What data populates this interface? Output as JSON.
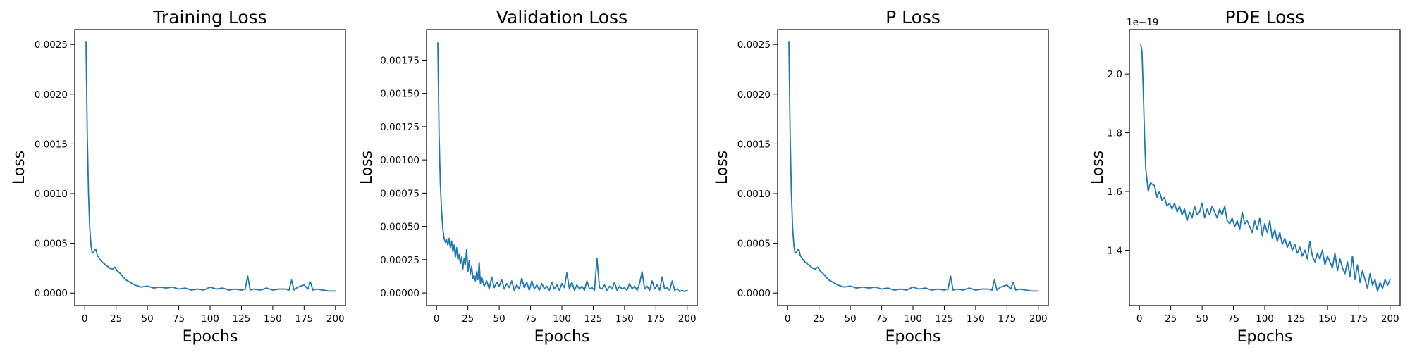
{
  "figure": {
    "background": "#ffffff",
    "line_color": "#1f77b4"
  },
  "chart_data": [
    {
      "type": "line",
      "title": "Training Loss",
      "xlabel": "Epochs",
      "ylabel": "Loss",
      "xlim": [
        -8,
        208
      ],
      "ylim": [
        -0.000126,
        0.00265
      ],
      "xticks": [
        0,
        25,
        50,
        75,
        100,
        125,
        150,
        175,
        200
      ],
      "yticks": [
        0.0,
        0.0005,
        0.001,
        0.0015,
        0.002,
        0.0025
      ],
      "ytick_labels": [
        "0.0000",
        "0.0005",
        "0.0010",
        "0.0015",
        "0.0020",
        "0.0025"
      ],
      "offset_text": "",
      "grid": false,
      "series": [
        {
          "x": [
            1,
            2,
            3,
            4,
            5,
            6,
            7,
            8,
            9,
            10,
            12,
            14,
            16,
            18,
            20,
            22,
            24,
            26,
            28,
            30,
            33,
            36,
            40,
            45,
            50,
            55,
            60,
            65,
            70,
            75,
            80,
            85,
            90,
            95,
            100,
            105,
            110,
            115,
            120,
            125,
            128,
            130,
            132,
            135,
            140,
            145,
            150,
            155,
            160,
            163,
            165,
            167,
            170,
            175,
            178,
            180,
            182,
            185,
            190,
            195,
            200
          ],
          "values": [
            0.00253,
            0.0016,
            0.001,
            0.00065,
            0.00048,
            0.0004,
            0.00041,
            0.00043,
            0.00044,
            0.00038,
            0.00034,
            0.00031,
            0.00029,
            0.00027,
            0.00025,
            0.00024,
            0.00026,
            0.00022,
            0.0002,
            0.00017,
            0.00013,
            0.00011,
            8e-05,
            6e-05,
            7e-05,
            5e-05,
            6e-05,
            5e-05,
            6e-05,
            4e-05,
            5e-05,
            3e-05,
            4e-05,
            3e-05,
            6e-05,
            4e-05,
            5e-05,
            3e-05,
            4e-05,
            3e-05,
            4e-05,
            0.00017,
            3e-05,
            4e-05,
            3e-05,
            5e-05,
            3e-05,
            4e-05,
            4e-05,
            3e-05,
            0.00013,
            3e-05,
            6e-05,
            8e-05,
            4e-05,
            0.00011,
            3e-05,
            4e-05,
            3e-05,
            2e-05,
            2e-05
          ]
        }
      ]
    },
    {
      "type": "line",
      "title": "Validation Loss",
      "xlabel": "Epochs",
      "ylabel": "Loss",
      "xlim": [
        -8,
        208
      ],
      "ylim": [
        -9.5e-05,
        0.00198
      ],
      "xticks": [
        0,
        25,
        50,
        75,
        100,
        125,
        150,
        175,
        200
      ],
      "yticks": [
        0.0,
        0.00025,
        0.0005,
        0.00075,
        0.001,
        0.00125,
        0.0015,
        0.00175
      ],
      "ytick_labels": [
        "0.00000",
        "0.00025",
        "0.00050",
        "0.00075",
        "0.00100",
        "0.00125",
        "0.00150",
        "0.00175"
      ],
      "offset_text": "",
      "grid": false,
      "series": [
        {
          "x": [
            1,
            2,
            3,
            4,
            5,
            6,
            7,
            8,
            9,
            10,
            11,
            12,
            13,
            14,
            15,
            16,
            17,
            18,
            19,
            20,
            21,
            22,
            23,
            24,
            25,
            26,
            27,
            28,
            29,
            30,
            31,
            32,
            33,
            34,
            35,
            36,
            38,
            40,
            42,
            44,
            46,
            48,
            50,
            52,
            54,
            56,
            58,
            60,
            62,
            64,
            66,
            68,
            70,
            72,
            74,
            76,
            78,
            80,
            82,
            84,
            86,
            88,
            90,
            92,
            94,
            96,
            98,
            100,
            102,
            104,
            106,
            108,
            110,
            112,
            114,
            116,
            118,
            120,
            122,
            124,
            126,
            128,
            130,
            132,
            134,
            136,
            138,
            140,
            142,
            144,
            146,
            148,
            150,
            152,
            154,
            156,
            158,
            160,
            162,
            164,
            166,
            168,
            170,
            172,
            174,
            176,
            178,
            180,
            182,
            184,
            186,
            188,
            190,
            192,
            194,
            196,
            198,
            200
          ],
          "values": [
            0.00188,
            0.0012,
            0.00082,
            0.00062,
            0.00048,
            0.00041,
            0.00038,
            0.0004,
            0.00036,
            0.00041,
            0.00034,
            0.00039,
            0.00031,
            0.00036,
            0.00027,
            0.00034,
            0.00025,
            0.00029,
            0.00022,
            0.00027,
            0.00018,
            0.00026,
            0.00021,
            0.00033,
            0.00016,
            0.00024,
            0.00014,
            0.0002,
            0.00011,
            0.00013,
            9e-05,
            0.00016,
            0.0001,
            0.00023,
            7e-05,
            0.00012,
            5e-05,
            9e-05,
            3e-05,
            0.00012,
            4e-05,
            8e-05,
            5e-05,
            0.0001,
            3e-05,
            7e-05,
            4e-05,
            9e-05,
            2e-05,
            6e-05,
            3e-05,
            0.00011,
            4e-05,
            8e-05,
            2e-05,
            9e-05,
            3e-05,
            6e-05,
            2e-05,
            7e-05,
            3e-05,
            5e-05,
            2e-05,
            8e-05,
            3e-05,
            6e-05,
            2e-05,
            7e-05,
            4e-05,
            0.00015,
            3e-05,
            8e-05,
            2e-05,
            6e-05,
            3e-05,
            5e-05,
            2e-05,
            9e-05,
            3e-05,
            4e-05,
            2e-05,
            0.00026,
            4e-05,
            3e-05,
            6e-05,
            2e-05,
            5e-05,
            3e-05,
            8e-05,
            2e-05,
            5e-05,
            3e-05,
            4e-05,
            2e-05,
            7e-05,
            3e-05,
            5e-05,
            2e-05,
            7e-05,
            0.00016,
            3e-05,
            5e-05,
            2e-05,
            9e-05,
            3e-05,
            6e-05,
            2e-05,
            0.00012,
            3e-05,
            4e-05,
            2e-05,
            9e-05,
            2e-05,
            3e-05,
            1e-05,
            2e-05,
            1e-05,
            2e-05
          ]
        }
      ]
    },
    {
      "type": "line",
      "title": "P Loss",
      "xlabel": "Epochs",
      "ylabel": "Loss",
      "xlim": [
        -8,
        208
      ],
      "ylim": [
        -0.000126,
        0.00265
      ],
      "xticks": [
        0,
        25,
        50,
        75,
        100,
        125,
        150,
        175,
        200
      ],
      "yticks": [
        0.0,
        0.0005,
        0.001,
        0.0015,
        0.002,
        0.0025
      ],
      "ytick_labels": [
        "0.0000",
        "0.0005",
        "0.0010",
        "0.0015",
        "0.0020",
        "0.0025"
      ],
      "offset_text": "",
      "grid": false,
      "series": [
        {
          "x": [
            1,
            2,
            3,
            4,
            5,
            6,
            7,
            8,
            9,
            10,
            12,
            14,
            16,
            18,
            20,
            22,
            24,
            26,
            28,
            30,
            33,
            36,
            40,
            45,
            50,
            55,
            60,
            65,
            70,
            75,
            80,
            85,
            90,
            95,
            100,
            105,
            110,
            115,
            120,
            125,
            128,
            130,
            132,
            135,
            140,
            145,
            150,
            155,
            160,
            163,
            165,
            167,
            170,
            175,
            178,
            180,
            182,
            185,
            190,
            195,
            200
          ],
          "values": [
            0.00253,
            0.0016,
            0.001,
            0.00065,
            0.00048,
            0.0004,
            0.00041,
            0.00043,
            0.00044,
            0.00038,
            0.00034,
            0.00031,
            0.00029,
            0.00027,
            0.00025,
            0.00024,
            0.00026,
            0.00022,
            0.0002,
            0.00017,
            0.00013,
            0.00011,
            8e-05,
            6e-05,
            7e-05,
            5e-05,
            6e-05,
            5e-05,
            6e-05,
            4e-05,
            5e-05,
            3e-05,
            4e-05,
            3e-05,
            6e-05,
            4e-05,
            5e-05,
            3e-05,
            4e-05,
            3e-05,
            4e-05,
            0.00017,
            3e-05,
            4e-05,
            3e-05,
            5e-05,
            3e-05,
            4e-05,
            4e-05,
            3e-05,
            0.00013,
            3e-05,
            6e-05,
            8e-05,
            4e-05,
            0.00011,
            3e-05,
            4e-05,
            3e-05,
            2e-05,
            2e-05
          ]
        }
      ]
    },
    {
      "type": "line",
      "title": "PDE Loss",
      "xlabel": "Epochs",
      "ylabel": "Loss",
      "xlim": [
        -8,
        208
      ],
      "ylim": [
        1.2115e-19,
        2.1515e-19
      ],
      "xticks": [
        0,
        25,
        50,
        75,
        100,
        125,
        150,
        175,
        200
      ],
      "yticks": [
        1.4e-19,
        1.6e-19,
        1.8e-19,
        2e-19
      ],
      "ytick_labels": [
        "1.4",
        "1.6",
        "1.8",
        "2.0"
      ],
      "offset_text": "1e−19",
      "grid": false,
      "series": [
        {
          "x": [
            1,
            2,
            3,
            4,
            5,
            6,
            7,
            8,
            9,
            10,
            12,
            14,
            16,
            18,
            20,
            22,
            24,
            26,
            28,
            30,
            32,
            34,
            36,
            38,
            40,
            42,
            44,
            46,
            48,
            50,
            52,
            54,
            56,
            58,
            60,
            62,
            64,
            66,
            68,
            70,
            72,
            74,
            76,
            78,
            80,
            82,
            84,
            86,
            88,
            90,
            92,
            94,
            96,
            98,
            100,
            102,
            104,
            106,
            108,
            110,
            112,
            114,
            116,
            118,
            120,
            122,
            124,
            126,
            128,
            130,
            132,
            134,
            136,
            138,
            140,
            142,
            144,
            146,
            148,
            150,
            152,
            154,
            156,
            158,
            160,
            162,
            164,
            166,
            168,
            170,
            172,
            174,
            176,
            178,
            180,
            182,
            184,
            186,
            188,
            190,
            192,
            194,
            196,
            198,
            200
          ],
          "values": [
            2.1e-19,
            2.08e-19,
            1.95e-19,
            1.8e-19,
            1.68e-19,
            1.64e-19,
            1.6e-19,
            1.62e-19,
            1.63e-19,
            1.625e-19,
            1.62e-19,
            1.58e-19,
            1.6e-19,
            1.57e-19,
            1.58e-19,
            1.55e-19,
            1.56e-19,
            1.54e-19,
            1.56e-19,
            1.53e-19,
            1.55e-19,
            1.52e-19,
            1.54e-19,
            1.5e-19,
            1.53e-19,
            1.51e-19,
            1.55e-19,
            1.52e-19,
            1.53e-19,
            1.56e-19,
            1.51e-19,
            1.54e-19,
            1.52e-19,
            1.55e-19,
            1.53e-19,
            1.51e-19,
            1.54e-19,
            1.52e-19,
            1.55e-19,
            1.5e-19,
            1.49e-19,
            1.51e-19,
            1.48e-19,
            1.5e-19,
            1.47e-19,
            1.53e-19,
            1.49e-19,
            1.5e-19,
            1.48e-19,
            1.46e-19,
            1.5e-19,
            1.47e-19,
            1.51e-19,
            1.45e-19,
            1.49e-19,
            1.46e-19,
            1.5e-19,
            1.44e-19,
            1.47e-19,
            1.43e-19,
            1.46e-19,
            1.42e-19,
            1.44e-19,
            1.41e-19,
            1.43e-19,
            1.4e-19,
            1.42e-19,
            1.39e-19,
            1.41e-19,
            1.38e-19,
            1.4e-19,
            1.37e-19,
            1.43e-19,
            1.38e-19,
            1.36e-19,
            1.39e-19,
            1.37e-19,
            1.4e-19,
            1.35e-19,
            1.38e-19,
            1.36e-19,
            1.34e-19,
            1.39e-19,
            1.33e-19,
            1.37e-19,
            1.34e-19,
            1.32e-19,
            1.36e-19,
            1.31e-19,
            1.38e-19,
            1.3e-19,
            1.35e-19,
            1.29e-19,
            1.33e-19,
            1.3e-19,
            1.27e-19,
            1.32e-19,
            1.28e-19,
            1.3e-19,
            1.26e-19,
            1.29e-19,
            1.27e-19,
            1.3e-19,
            1.28e-19,
            1.3e-19
          ]
        }
      ]
    }
  ]
}
